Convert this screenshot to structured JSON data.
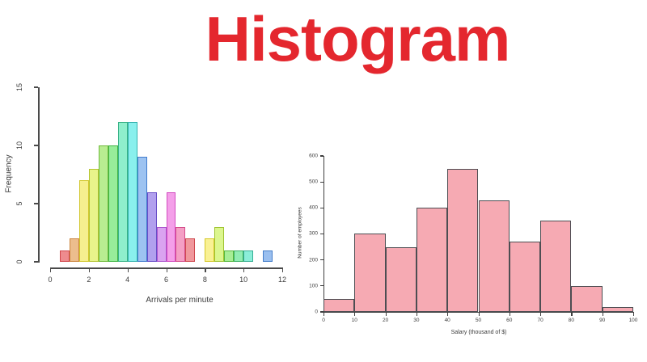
{
  "header": {
    "title": "Histogram",
    "title_color": "#e4272e"
  },
  "chart_data": [
    {
      "id": "arrivals-histogram",
      "type": "bar",
      "title": "",
      "xlabel": "Arrivals per minute",
      "ylabel": "Frequency",
      "xlim": [
        0,
        12
      ],
      "ylim": [
        0,
        15
      ],
      "x_ticks": [
        0,
        2,
        4,
        6,
        8,
        10,
        12
      ],
      "y_ticks": [
        0,
        5,
        10,
        15
      ],
      "bin_width": 0.5,
      "axis_color": "#4a4a4a",
      "grid": false,
      "legend": false,
      "bars": [
        {
          "bin_start": 0.5,
          "count": 1,
          "fill": "hsl(358,75%,74%)",
          "stroke": "hsl(358,60%,55%)"
        },
        {
          "bin_start": 1.0,
          "count": 2,
          "fill": "hsl(30,72%,74%)",
          "stroke": "hsl(30,58%,52%)"
        },
        {
          "bin_start": 1.5,
          "count": 7,
          "fill": "hsl(56,85%,76%)",
          "stroke": "hsl(56,65%,50%)"
        },
        {
          "bin_start": 2.0,
          "count": 8,
          "fill": "hsl(66,82%,75%)",
          "stroke": "hsl(66,60%,48%)"
        },
        {
          "bin_start": 2.5,
          "count": 10,
          "fill": "hsl(95,72%,75%)",
          "stroke": "hsl(95,52%,48%)"
        },
        {
          "bin_start": 3.0,
          "count": 10,
          "fill": "hsl(122,70%,76%)",
          "stroke": "hsl(122,48%,48%)"
        },
        {
          "bin_start": 3.5,
          "count": 12,
          "fill": "hsl(158,75%,75%)",
          "stroke": "hsl(158,52%,46%)"
        },
        {
          "bin_start": 4.0,
          "count": 12,
          "fill": "hsl(178,78%,74%)",
          "stroke": "hsl(178,55%,45%)"
        },
        {
          "bin_start": 4.5,
          "count": 9,
          "fill": "hsl(213,75%,78%)",
          "stroke": "hsl(215,58%,53%)"
        },
        {
          "bin_start": 5.0,
          "count": 6,
          "fill": "hsl(253,70%,78%)",
          "stroke": "hsl(253,52%,54%)"
        },
        {
          "bin_start": 5.5,
          "count": 3,
          "fill": "hsl(283,72%,79%)",
          "stroke": "hsl(283,55%,57%)"
        },
        {
          "bin_start": 6.0,
          "count": 6,
          "fill": "hsl(308,80%,79%)",
          "stroke": "hsl(308,60%,56%)"
        },
        {
          "bin_start": 6.5,
          "count": 3,
          "fill": "hsl(333,80%,79%)",
          "stroke": "hsl(333,62%,57%)"
        },
        {
          "bin_start": 7.0,
          "count": 2,
          "fill": "hsl(357,75%,77%)",
          "stroke": "hsl(357,58%,55%)"
        },
        {
          "bin_start": 8.0,
          "count": 2,
          "fill": "hsl(55,90%,78%)",
          "stroke": "hsl(55,68%,50%)"
        },
        {
          "bin_start": 8.5,
          "count": 3,
          "fill": "hsl(75,85%,76%)",
          "stroke": "hsl(75,60%,48%)"
        },
        {
          "bin_start": 9.0,
          "count": 1,
          "fill": "hsl(108,72%,76%)",
          "stroke": "hsl(108,50%,48%)"
        },
        {
          "bin_start": 9.5,
          "count": 1,
          "fill": "hsl(142,72%,75%)",
          "stroke": "hsl(142,50%,46%)"
        },
        {
          "bin_start": 10.0,
          "count": 1,
          "fill": "hsl(167,75%,74%)",
          "stroke": "hsl(167,52%,45%)"
        },
        {
          "bin_start": 11.0,
          "count": 1,
          "fill": "hsl(214,72%,77%)",
          "stroke": "hsl(214,55%,53%)"
        }
      ]
    },
    {
      "id": "salary-histogram",
      "type": "bar",
      "title": "",
      "xlabel": "Salary (thousand of $)",
      "ylabel": "Number of employees",
      "xlim": [
        0,
        100
      ],
      "ylim": [
        0,
        600
      ],
      "x_ticks": [
        0,
        10,
        20,
        30,
        40,
        50,
        60,
        70,
        80,
        90,
        100
      ],
      "y_ticks": [
        0,
        100,
        200,
        300,
        400,
        500,
        600
      ],
      "bin_width": 10,
      "axis_color": "#3f3f3f",
      "bar_fill": "#f6aab3",
      "bar_stroke": "#4d4d52",
      "grid": false,
      "legend": false,
      "bars": [
        {
          "bin_start": 0,
          "count": 50
        },
        {
          "bin_start": 10,
          "count": 300
        },
        {
          "bin_start": 20,
          "count": 250
        },
        {
          "bin_start": 30,
          "count": 400
        },
        {
          "bin_start": 40,
          "count": 550
        },
        {
          "bin_start": 50,
          "count": 430
        },
        {
          "bin_start": 60,
          "count": 270
        },
        {
          "bin_start": 70,
          "count": 350
        },
        {
          "bin_start": 80,
          "count": 100
        },
        {
          "bin_start": 90,
          "count": 20
        }
      ]
    }
  ]
}
